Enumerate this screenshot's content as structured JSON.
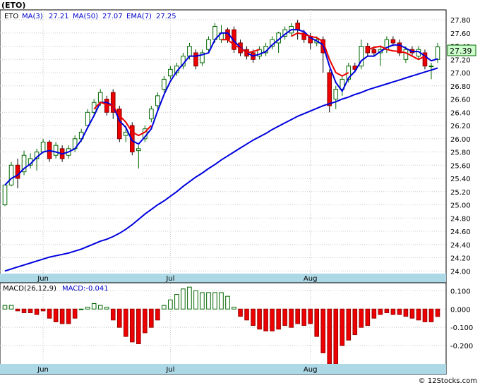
{
  "chart_data": {
    "type": "candlestick",
    "symbol": "(ETO)",
    "legend": {
      "symbol": "ETO",
      "ma3_label": "MA(3)",
      "ma3_value": "27.21",
      "ma50_label": "MA(50)",
      "ma50_value": "27.07",
      "ema7_label": "EMA(7)",
      "ema7_value": "27.25"
    },
    "last_price_label": "27.39",
    "x_labels": [
      {
        "text": "Jun",
        "index": 6
      },
      {
        "text": "Jul",
        "index": 26
      },
      {
        "text": "Aug",
        "index": 48
      }
    ],
    "price_axis": {
      "ylim": [
        23.96,
        27.95
      ],
      "ticks": [
        "24.00",
        "24.20",
        "24.40",
        "24.60",
        "24.80",
        "25.00",
        "25.20",
        "25.40",
        "25.60",
        "25.80",
        "26.00",
        "26.20",
        "26.40",
        "26.60",
        "26.80",
        "27.00",
        "27.20",
        "27.40",
        "27.60",
        "27.80"
      ]
    },
    "candles": [
      [
        25.0,
        25.3,
        24.98,
        25.31
      ],
      [
        25.3,
        25.6,
        25.28,
        25.65
      ],
      [
        25.6,
        25.4,
        25.25,
        25.7
      ],
      [
        25.5,
        25.75,
        25.45,
        25.82
      ],
      [
        25.6,
        25.7,
        25.55,
        25.78
      ],
      [
        25.7,
        25.8,
        25.52,
        25.85
      ],
      [
        25.8,
        25.95,
        25.78,
        26.0
      ],
      [
        25.95,
        25.7,
        25.65,
        25.98
      ],
      [
        25.75,
        25.9,
        25.7,
        25.95
      ],
      [
        25.85,
        25.7,
        25.65,
        25.9
      ],
      [
        25.75,
        25.85,
        25.7,
        25.9
      ],
      [
        25.85,
        26.0,
        25.8,
        26.05
      ],
      [
        26.0,
        26.1,
        25.95,
        26.15
      ],
      [
        26.2,
        26.4,
        26.15,
        26.45
      ],
      [
        26.4,
        26.55,
        26.35,
        26.6
      ],
      [
        26.55,
        26.7,
        26.5,
        26.75
      ],
      [
        26.6,
        26.4,
        26.35,
        26.65
      ],
      [
        26.7,
        26.4,
        26.3,
        26.75
      ],
      [
        26.45,
        26.0,
        25.95,
        26.5
      ],
      [
        26.05,
        26.1,
        25.95,
        26.2
      ],
      [
        26.2,
        25.8,
        25.75,
        26.25
      ],
      [
        25.82,
        25.85,
        25.55,
        25.9
      ],
      [
        26.0,
        26.15,
        25.95,
        26.2
      ],
      [
        26.3,
        26.45,
        26.25,
        26.5
      ],
      [
        26.5,
        26.65,
        26.45,
        26.7
      ],
      [
        26.75,
        26.9,
        26.7,
        26.95
      ],
      [
        26.95,
        27.05,
        26.9,
        27.1
      ],
      [
        27.0,
        27.1,
        26.95,
        27.15
      ],
      [
        27.1,
        27.25,
        27.05,
        27.3
      ],
      [
        27.25,
        27.4,
        27.2,
        27.45
      ],
      [
        27.3,
        27.1,
        27.05,
        27.35
      ],
      [
        27.15,
        27.3,
        27.1,
        27.35
      ],
      [
        27.35,
        27.5,
        27.3,
        27.55
      ],
      [
        27.5,
        27.7,
        27.45,
        27.75
      ],
      [
        27.5,
        27.6,
        27.45,
        27.72
      ],
      [
        27.65,
        27.5,
        27.45,
        27.68
      ],
      [
        27.65,
        27.35,
        27.3,
        27.7
      ],
      [
        27.45,
        27.3,
        27.25,
        27.5
      ],
      [
        27.35,
        27.25,
        27.2,
        27.4
      ],
      [
        27.3,
        27.2,
        27.15,
        27.35
      ],
      [
        27.25,
        27.35,
        27.2,
        27.4
      ],
      [
        27.3,
        27.4,
        27.25,
        27.45
      ],
      [
        27.4,
        27.5,
        27.35,
        27.55
      ],
      [
        27.45,
        27.6,
        27.3,
        27.62
      ],
      [
        27.55,
        27.65,
        27.5,
        27.7
      ],
      [
        27.6,
        27.7,
        27.55,
        27.75
      ],
      [
        27.75,
        27.65,
        27.5,
        27.8
      ],
      [
        27.6,
        27.5,
        27.45,
        27.65
      ],
      [
        27.55,
        27.45,
        27.35,
        27.6
      ],
      [
        27.45,
        27.5,
        27.4,
        27.55
      ],
      [
        27.5,
        27.3,
        27.0,
        27.55
      ],
      [
        27.0,
        26.5,
        26.4,
        27.05
      ],
      [
        26.6,
        26.75,
        26.45,
        26.8
      ],
      [
        26.75,
        26.9,
        26.65,
        26.95
      ],
      [
        26.9,
        27.1,
        26.85,
        27.15
      ],
      [
        27.1,
        27.05,
        27.0,
        27.15
      ],
      [
        27.1,
        27.4,
        27.05,
        27.5
      ],
      [
        27.4,
        27.3,
        27.25,
        27.45
      ],
      [
        27.35,
        27.3,
        27.25,
        27.4
      ],
      [
        27.3,
        27.35,
        27.1,
        27.4
      ],
      [
        27.35,
        27.5,
        27.3,
        27.55
      ],
      [
        27.5,
        27.45,
        27.4,
        27.55
      ],
      [
        27.45,
        27.3,
        27.25,
        27.5
      ],
      [
        27.2,
        27.35,
        27.15,
        27.4
      ],
      [
        27.35,
        27.3,
        27.25,
        27.4
      ],
      [
        27.25,
        27.35,
        27.2,
        27.4
      ],
      [
        27.3,
        27.1,
        27.05,
        27.35
      ],
      [
        27.1,
        27.1,
        26.9,
        27.15
      ],
      [
        27.2,
        27.39,
        27.15,
        27.45
      ]
    ],
    "ma3": [
      25.3,
      25.4,
      25.45,
      25.55,
      25.62,
      25.72,
      25.8,
      25.82,
      25.8,
      25.77,
      25.8,
      25.85,
      25.98,
      26.17,
      26.35,
      26.55,
      26.55,
      26.5,
      26.27,
      26.17,
      25.97,
      25.92,
      26.03,
      26.15,
      26.42,
      26.67,
      26.87,
      27.02,
      27.13,
      27.25,
      27.25,
      27.27,
      27.3,
      27.5,
      27.6,
      27.6,
      27.48,
      27.38,
      27.3,
      27.25,
      27.28,
      27.32,
      27.42,
      27.5,
      27.58,
      27.65,
      27.65,
      27.62,
      27.53,
      27.48,
      27.42,
      27.1,
      26.85,
      26.72,
      26.92,
      27.02,
      27.18,
      27.25,
      27.25,
      27.32,
      27.38,
      27.42,
      27.42,
      27.37,
      27.32,
      27.32,
      27.25,
      27.18,
      27.21
    ],
    "ma50": [
      24.0,
      24.03,
      24.06,
      24.09,
      24.12,
      24.15,
      24.18,
      24.21,
      24.23,
      24.25,
      24.27,
      24.3,
      24.33,
      24.37,
      24.41,
      24.45,
      24.48,
      24.52,
      24.57,
      24.63,
      24.7,
      24.78,
      24.86,
      24.93,
      25.0,
      25.06,
      25.13,
      25.2,
      25.28,
      25.35,
      25.42,
      25.48,
      25.55,
      25.61,
      25.68,
      25.74,
      25.8,
      25.86,
      25.92,
      25.98,
      26.03,
      26.08,
      26.14,
      26.19,
      26.24,
      26.29,
      26.34,
      26.38,
      26.42,
      26.46,
      26.5,
      26.53,
      26.56,
      26.6,
      26.63,
      26.67,
      26.7,
      26.74,
      26.77,
      26.8,
      26.83,
      26.86,
      26.89,
      26.92,
      26.95,
      26.98,
      27.01,
      27.04,
      27.07
    ],
    "ema7": [
      null,
      null,
      null,
      null,
      null,
      null,
      null,
      null,
      null,
      null,
      null,
      null,
      null,
      null,
      null,
      null,
      null,
      null,
      null,
      null,
      null,
      null,
      null,
      null,
      null,
      null,
      null,
      null,
      null,
      null,
      null,
      null,
      null,
      null,
      null,
      null,
      null,
      null,
      null,
      null,
      null,
      null,
      null,
      null,
      null,
      null,
      null,
      null,
      null,
      null,
      null,
      null,
      null,
      null,
      null,
      null,
      null,
      null,
      null,
      null,
      null,
      null,
      null,
      null,
      null,
      null,
      null,
      null,
      null
    ],
    "ema7_segments": [
      {
        "start": 14,
        "values": [
          26.45,
          26.55,
          26.52,
          26.5,
          26.35,
          26.25,
          26.1,
          26.05,
          26.1,
          26.2
        ]
      },
      {
        "start": 34,
        "values": [
          27.5,
          27.5,
          27.42,
          27.37,
          27.3,
          27.32,
          27.35
        ]
      },
      {
        "start": 45,
        "values": [
          27.55,
          27.6,
          27.58,
          27.55,
          27.53,
          27.47,
          27.2,
          27.0,
          26.95,
          27.0
        ]
      },
      {
        "start": 57,
        "values": [
          27.35,
          27.38,
          27.4,
          27.35,
          27.33,
          27.32,
          27.3,
          27.25,
          27.2,
          27.25
        ]
      }
    ],
    "macd_legend": {
      "label": "MACD(26,12,9)",
      "value_label": "MACD:-0.041"
    },
    "macd_axis": {
      "ylim": [
        -0.3,
        0.14
      ],
      "ticks": [
        "0.100",
        "0.000",
        "-0.100",
        "-0.200"
      ]
    },
    "macd": [
      0.02,
      0.02,
      -0.01,
      -0.02,
      -0.02,
      -0.03,
      -0.01,
      -0.05,
      -0.07,
      -0.08,
      -0.08,
      -0.05,
      0.0,
      0.01,
      0.03,
      0.02,
      0.01,
      -0.06,
      -0.1,
      -0.15,
      -0.18,
      -0.19,
      -0.13,
      -0.1,
      -0.06,
      0.02,
      0.05,
      0.08,
      0.11,
      0.12,
      0.1,
      0.09,
      0.09,
      0.09,
      0.09,
      0.07,
      0.01,
      -0.04,
      -0.06,
      -0.09,
      -0.11,
      -0.12,
      -0.12,
      -0.11,
      -0.09,
      -0.1,
      -0.08,
      -0.09,
      -0.08,
      -0.15,
      -0.24,
      -0.3,
      -0.3,
      -0.2,
      -0.17,
      -0.14,
      -0.1,
      -0.09,
      -0.05,
      -0.03,
      -0.02,
      -0.03,
      -0.03,
      -0.04,
      -0.05,
      -0.06,
      -0.07,
      -0.07,
      -0.041
    ],
    "colors": {
      "up": "#006600",
      "down": "#ee0000",
      "ma_line": "#0000dd",
      "ema_line": "#ee0000",
      "axis_band": "#add8e6",
      "grid": "#c8c8c8"
    },
    "watermark": "© 12Stocks.com"
  }
}
